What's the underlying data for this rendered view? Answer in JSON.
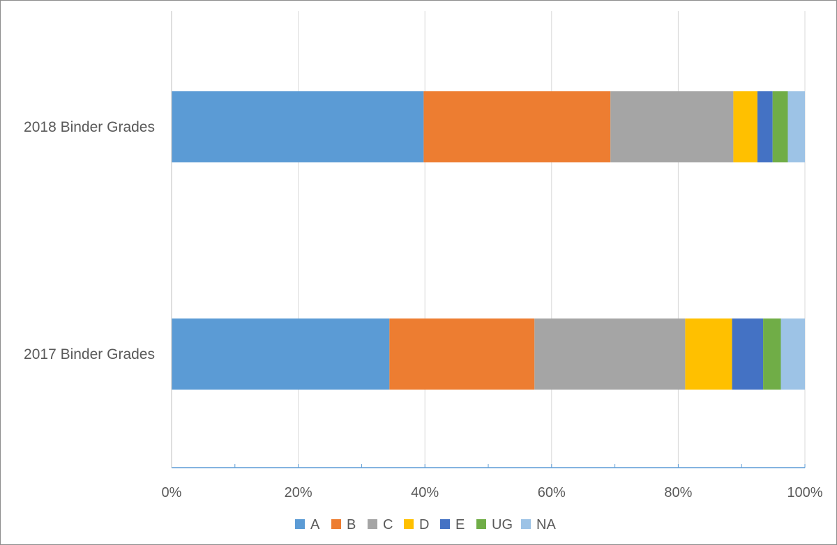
{
  "chart_data": {
    "type": "bar",
    "orientation": "horizontal",
    "stacked": "percent",
    "categories": [
      "2018 Binder Grades",
      "2017 Binder Grades"
    ],
    "series": [
      {
        "name": "A",
        "color": "#5B9BD5",
        "values": [
          39.8,
          34.4
        ]
      },
      {
        "name": "B",
        "color": "#ED7D31",
        "values": [
          29.5,
          22.9
        ]
      },
      {
        "name": "C",
        "color": "#A5A5A5",
        "values": [
          19.4,
          23.8
        ]
      },
      {
        "name": "D",
        "color": "#FFC000",
        "values": [
          3.8,
          7.4
        ]
      },
      {
        "name": "E",
        "color": "#4472C4",
        "values": [
          2.4,
          4.9
        ]
      },
      {
        "name": "UG",
        "color": "#70AD47",
        "values": [
          2.4,
          2.8
        ]
      },
      {
        "name": "NA",
        "color": "#9DC3E6",
        "values": [
          2.7,
          3.8
        ]
      }
    ],
    "x_ticks": [
      "0%",
      "20%",
      "40%",
      "60%",
      "80%",
      "100%"
    ],
    "xlim": [
      0,
      100
    ],
    "grid": true,
    "legend_position": "bottom",
    "title": "",
    "xlabel": "",
    "ylabel": ""
  }
}
